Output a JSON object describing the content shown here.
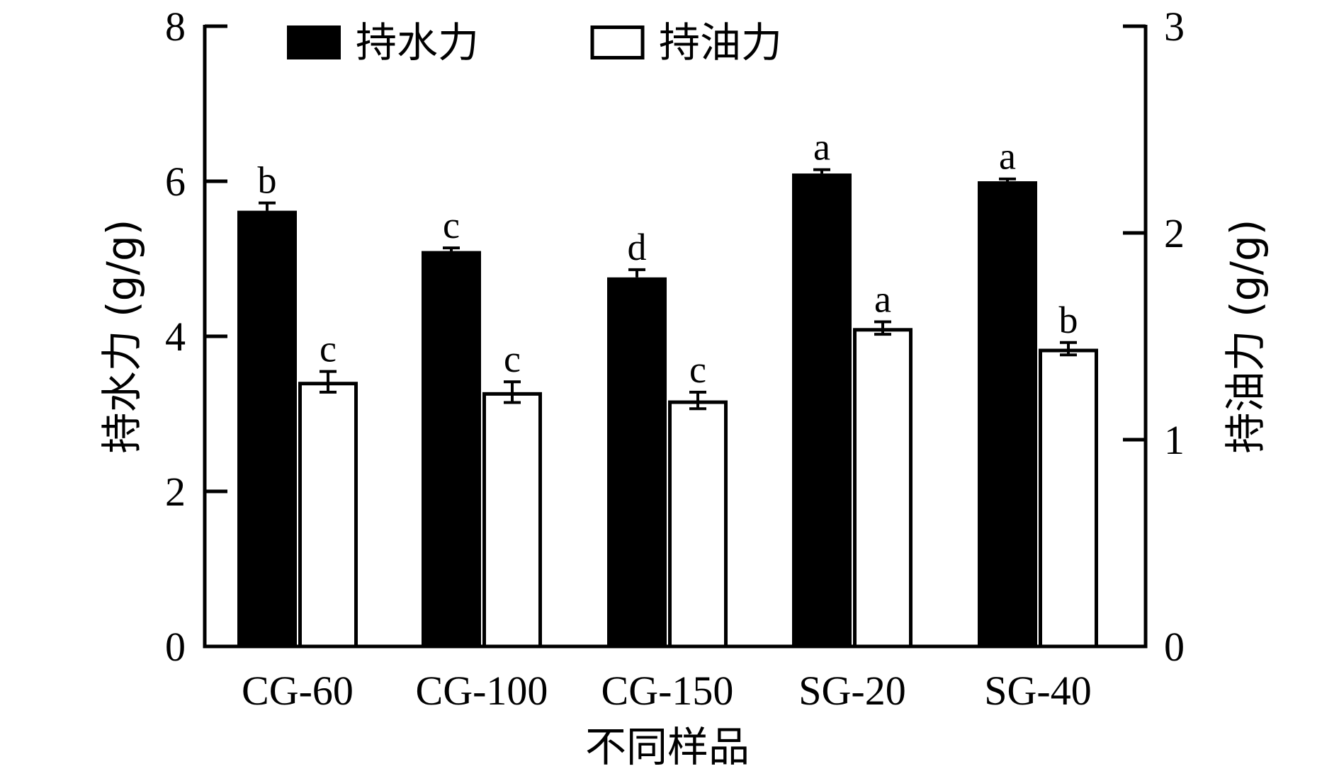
{
  "chart_data": {
    "type": "bar",
    "xlabel": "不同样品",
    "ylabel_left": "持水力 (g/g)",
    "ylabel_right": "持油力 (g/g)",
    "ylim_left": [
      0,
      8
    ],
    "ylim_right": [
      0,
      3
    ],
    "yticks_left": [
      0,
      2,
      4,
      6,
      8
    ],
    "yticks_right": [
      0,
      1,
      2,
      3
    ],
    "grid": false,
    "legend_position": "top",
    "categories": [
      "CG-60",
      "CG-100",
      "CG-150",
      "SG-20",
      "SG-40"
    ],
    "series": [
      {
        "name": "持水力",
        "axis": "left",
        "fill": "black",
        "values": [
          5.62,
          5.1,
          4.76,
          6.1,
          6.0
        ],
        "errors": [
          0.1,
          0.04,
          0.1,
          0.05,
          0.03
        ],
        "labels": [
          "b",
          "c",
          "d",
          "a",
          "a"
        ]
      },
      {
        "name": "持油力",
        "axis": "right",
        "fill": "white",
        "values": [
          1.28,
          1.23,
          1.19,
          1.54,
          1.44
        ],
        "errors": [
          0.05,
          0.05,
          0.04,
          0.03,
          0.03
        ],
        "labels": [
          "c",
          "c",
          "c",
          "a",
          "b"
        ]
      }
    ]
  },
  "colors": {
    "series_fill_1": "#000000",
    "series_fill_2": "#ffffff",
    "axis": "#000000"
  }
}
